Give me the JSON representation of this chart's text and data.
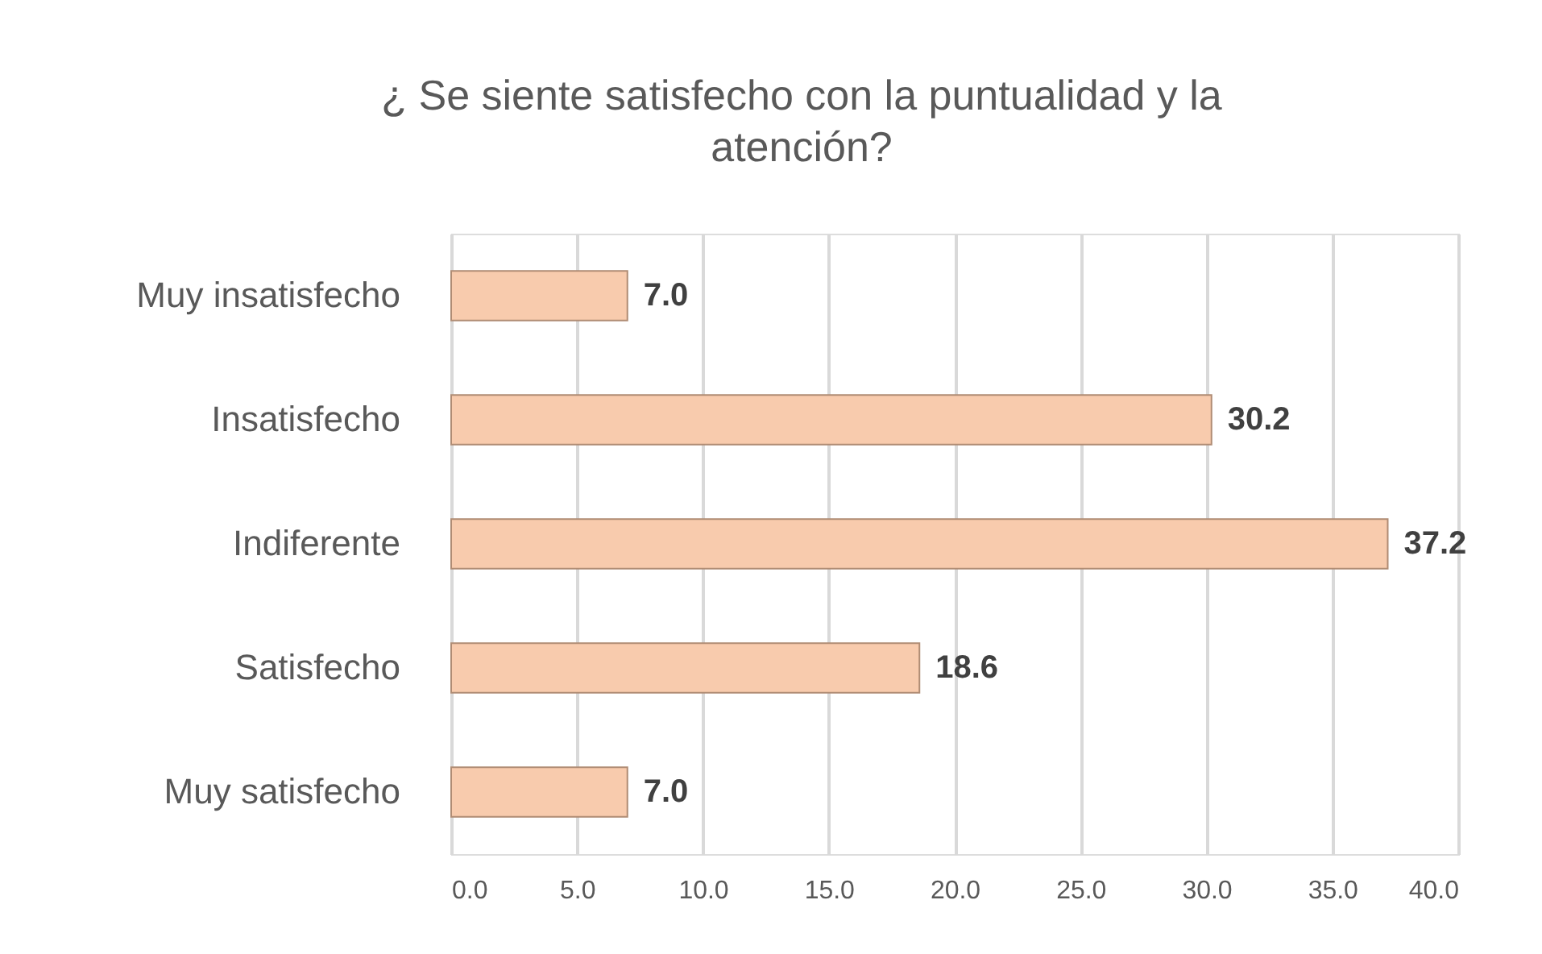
{
  "chart_data": {
    "type": "bar",
    "orientation": "horizontal",
    "title": "¿ Se siente satisfecho con la puntualidad y la atención?",
    "categories": [
      "Muy insatisfecho",
      "Insatisfecho",
      "Indiferente",
      "Satisfecho",
      "Muy satisfecho"
    ],
    "values": [
      7.0,
      30.2,
      37.2,
      18.6,
      7.0
    ],
    "value_labels": [
      "7.0",
      "30.2",
      "37.2",
      "18.6",
      "7.0"
    ],
    "color": "#f8cbad",
    "xlim": [
      0,
      40
    ],
    "xticks": [
      {
        "value": 0,
        "label": "0.0"
      },
      {
        "value": 5,
        "label": "5.0"
      },
      {
        "value": 10,
        "label": "10.0"
      },
      {
        "value": 15,
        "label": "15.0"
      },
      {
        "value": 20,
        "label": "20.0"
      },
      {
        "value": 25,
        "label": "25.0"
      },
      {
        "value": 30,
        "label": "30.0"
      },
      {
        "value": 35,
        "label": "35.0"
      },
      {
        "value": 40,
        "label": "40.0"
      }
    ],
    "grid": "x"
  }
}
